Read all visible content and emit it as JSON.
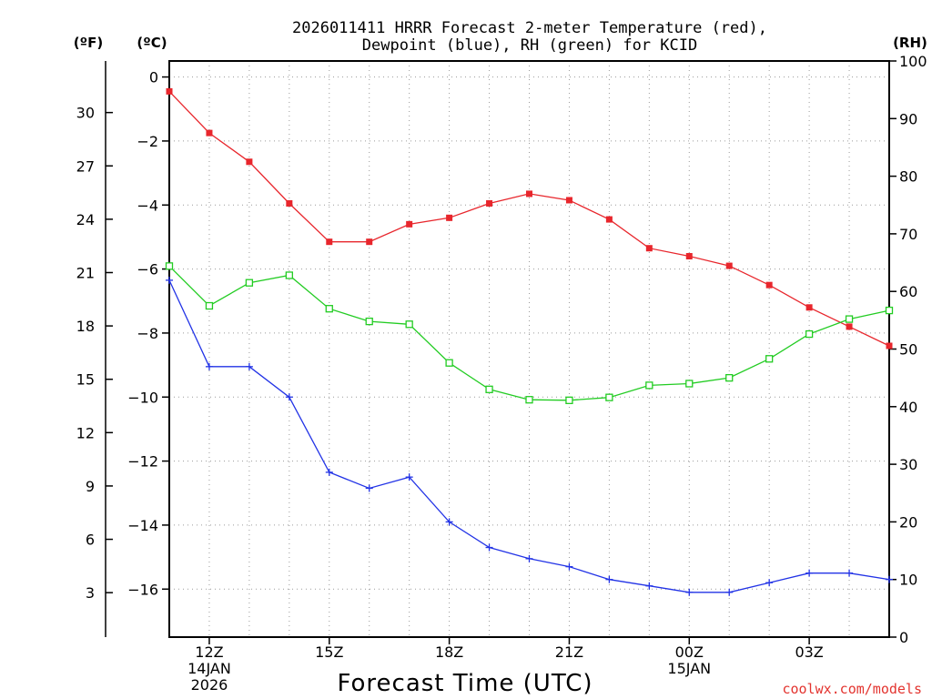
{
  "chart_data": {
    "type": "line",
    "title_lines": [
      "2026011411 HRRR Forecast 2-meter Temperature (red),",
      "Dewpoint (blue), RH (green) for KCID"
    ],
    "xlabel": "Forecast Time (UTC)",
    "credit": "coolwx.com/models",
    "units": {
      "fahrenheit": "(ºF)",
      "celsius": "(ºC)",
      "rh": "(RH)"
    },
    "x_hours": [
      11,
      12,
      13,
      14,
      15,
      16,
      17,
      18,
      19,
      20,
      21,
      22,
      23,
      24,
      25,
      26,
      27,
      28,
      29
    ],
    "x_range": [
      11,
      29
    ],
    "x_ticks": [
      {
        "hour": 12,
        "lines": [
          "12Z",
          "14JAN",
          "2026"
        ]
      },
      {
        "hour": 15,
        "lines": [
          "15Z"
        ]
      },
      {
        "hour": 18,
        "lines": [
          "18Z"
        ]
      },
      {
        "hour": 21,
        "lines": [
          "21Z"
        ]
      },
      {
        "hour": 24,
        "lines": [
          "00Z",
          "15JAN"
        ]
      },
      {
        "hour": 27,
        "lines": [
          "03Z"
        ]
      }
    ],
    "celsius_range": [
      -17.5,
      0.5
    ],
    "celsius_ticks": [
      0,
      -2,
      -4,
      -6,
      -8,
      -10,
      -12,
      -14,
      -16
    ],
    "fahrenheit_ticks": [
      30,
      27,
      24,
      21,
      18,
      15,
      12,
      9,
      6,
      3
    ],
    "rh_range": [
      0,
      100
    ],
    "rh_ticks": [
      0,
      10,
      20,
      30,
      40,
      50,
      60,
      70,
      80,
      90,
      100
    ],
    "series": [
      {
        "name": "Temperature",
        "axis": "celsius",
        "color": "#e8262c",
        "marker": "filled-square",
        "values": [
          -0.45,
          -1.75,
          -2.65,
          -3.95,
          -5.15,
          -5.15,
          -4.6,
          -4.4,
          -3.95,
          -3.65,
          -3.85,
          -4.45,
          -5.35,
          -5.6,
          -5.9,
          -6.5,
          -7.2,
          -7.8,
          -8.4
        ]
      },
      {
        "name": "Dewpoint",
        "axis": "celsius",
        "color": "#2233e6",
        "marker": "plus",
        "values": [
          -6.35,
          -9.05,
          -9.05,
          -10.0,
          -12.35,
          -12.85,
          -12.5,
          -13.9,
          -14.7,
          -15.05,
          -15.3,
          -15.7,
          -15.9,
          -16.1,
          -16.1,
          -15.8,
          -15.5,
          -15.5,
          -15.7
        ]
      },
      {
        "name": "RH",
        "axis": "rh",
        "color": "#22cc22",
        "marker": "open-square",
        "values": [
          64.4,
          57.5,
          61.5,
          62.8,
          57.0,
          54.8,
          54.3,
          47.6,
          43.0,
          41.2,
          41.1,
          41.6,
          43.7,
          44.0,
          45.0,
          48.3,
          52.6,
          55.2,
          56.7
        ]
      }
    ]
  }
}
